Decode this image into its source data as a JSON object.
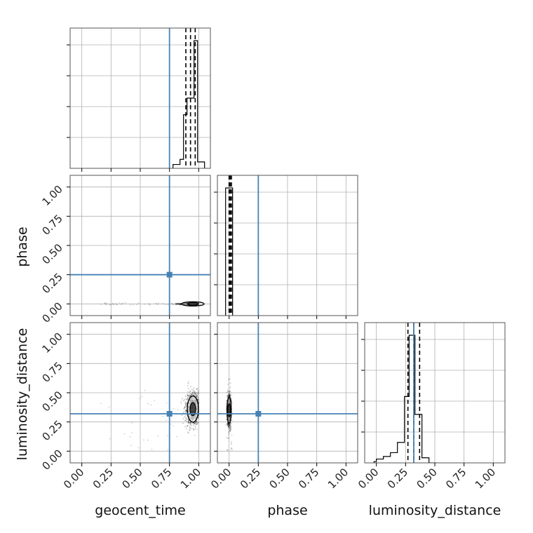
{
  "colors": {
    "truth": "#4682b4",
    "hist": "#000000",
    "grid": "#b0b0b0",
    "frame": "#555555"
  },
  "chart_data": {
    "type": "corner",
    "parameters": [
      "geocent_time",
      "phase",
      "luminosity_distance"
    ],
    "truths": {
      "geocent_time": 0.75,
      "phase": 0.25,
      "luminosity_distance": 0.32
    },
    "axis_range": [
      -0.1,
      1.1
    ],
    "tick_labels": [
      "0.00",
      "0.25",
      "0.50",
      "0.75",
      "1.00"
    ],
    "grid": true,
    "marginals": [
      {
        "parameter": "geocent_time",
        "quantiles": [
          0.89,
          0.93,
          0.97
        ],
        "histogram": {
          "edges": [
            0.78,
            0.84,
            0.87,
            0.9,
            0.96,
            0.99,
            1.05
          ],
          "counts": [
            0.03,
            0.07,
            0.42,
            0.55,
            1.0,
            0.05
          ]
        }
      },
      {
        "parameter": "phase",
        "quantiles": [
          0.0,
          0.01,
          0.02
        ],
        "histogram": {
          "edges": [
            -0.03,
            0.03
          ],
          "counts": [
            1.0
          ]
        }
      },
      {
        "parameter": "luminosity_distance",
        "quantiles": [
          0.27,
          0.32,
          0.37
        ],
        "histogram": {
          "edges": [
            -0.02,
            0.0,
            0.06,
            0.12,
            0.18,
            0.24,
            0.28,
            0.33,
            0.39,
            0.45,
            0.52
          ],
          "counts": [
            0.01,
            0.03,
            0.05,
            0.08,
            0.16,
            0.52,
            1.0,
            0.38,
            0.04,
            0.0
          ]
        }
      }
    ],
    "pairs": [
      {
        "x": "geocent_time",
        "y": "phase",
        "peak": [
          0.95,
          0.0
        ],
        "sample_spread": [
          0.06,
          0.003
        ],
        "scatter_range": {
          "x": [
            0.15,
            1.0
          ],
          "y": [
            -0.01,
            0.01
          ]
        }
      },
      {
        "x": "geocent_time",
        "y": "luminosity_distance",
        "peak": [
          0.95,
          0.36
        ],
        "sample_spread": [
          0.03,
          0.07
        ],
        "scatter_range": {
          "x": [
            0.15,
            1.0
          ],
          "y": [
            0.0,
            0.55
          ]
        }
      },
      {
        "x": "phase",
        "y": "luminosity_distance",
        "peak": [
          0.0,
          0.35
        ],
        "sample_spread": [
          0.008,
          0.07
        ],
        "scatter_range": {
          "x": [
            -0.02,
            0.03
          ],
          "y": [
            0.0,
            0.55
          ]
        }
      }
    ]
  }
}
